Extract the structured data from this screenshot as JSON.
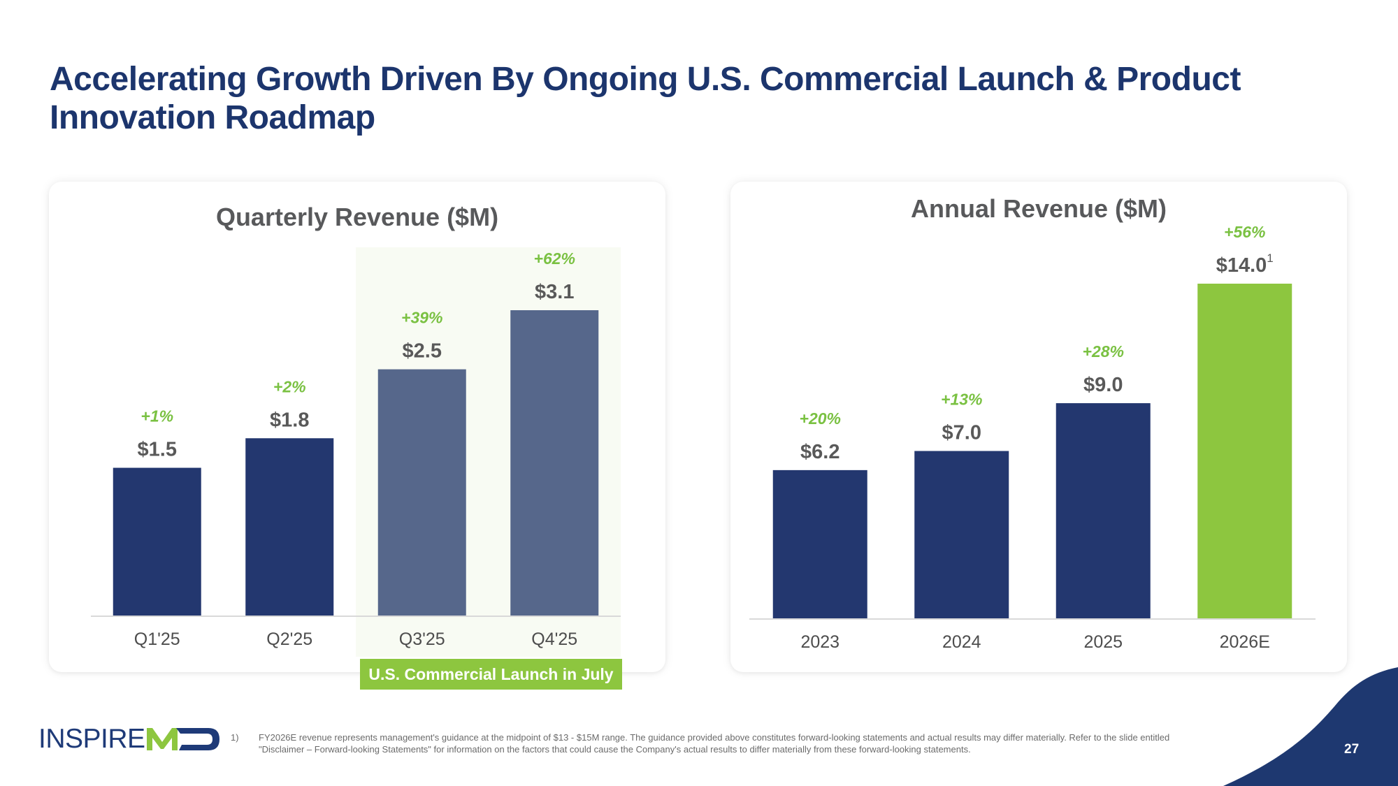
{
  "title": "Accelerating Growth Driven By Ongoing U.S. Commercial Launch & Product Innovation Roadmap",
  "colors": {
    "navy": "#23376f",
    "slate": "#56678b",
    "green": "#8dc63f",
    "growth_text": "#7ac142",
    "highlight_bg": "#f8fbf3",
    "axis": "#d9d9d9"
  },
  "chart_data": [
    {
      "type": "bar",
      "title": "Quarterly Revenue ($M)",
      "categories": [
        "Q1'25",
        "Q2'25",
        "Q3'25",
        "Q4'25"
      ],
      "values": [
        1.5,
        1.8,
        2.5,
        3.1
      ],
      "value_labels": [
        "$1.5",
        "$1.8",
        "$2.5",
        "$3.1"
      ],
      "growth_labels": [
        "+1%",
        "+2%",
        "+39%",
        "+62%"
      ],
      "bar_colors": [
        "#23376f",
        "#23376f",
        "#56678b",
        "#56678b"
      ],
      "highlighted_categories": [
        "Q3'25",
        "Q4'25"
      ],
      "annotation": "U.S. Commercial Launch in July",
      "xlabel": "",
      "ylabel": "",
      "ylim": [
        0,
        3.1
      ],
      "grid": false,
      "legend": "none"
    },
    {
      "type": "bar",
      "title": "Annual Revenue ($M)",
      "categories": [
        "2023",
        "2024",
        "2025",
        "2026E"
      ],
      "values": [
        6.2,
        7.0,
        9.0,
        14.0
      ],
      "value_labels": [
        "$6.2",
        "$7.0",
        "$9.0",
        "$14.0"
      ],
      "value_label_footnotes": [
        "",
        "",
        "",
        "1"
      ],
      "growth_labels": [
        "+20%",
        "+13%",
        "+28%",
        "+56%"
      ],
      "bar_colors": [
        "#23376f",
        "#23376f",
        "#23376f",
        "#8dc63f"
      ],
      "xlabel": "",
      "ylabel": "",
      "ylim": [
        0,
        14.0
      ],
      "grid": false,
      "legend": "none"
    }
  ],
  "logo": {
    "text_part": "INSPIRE",
    "mark_part": "MD"
  },
  "footnote": {
    "number": "1)",
    "text": "FY2026E revenue represents management's guidance at the midpoint of $13 - $15M range. The guidance provided above constitutes forward-looking statements and actual results may differ materially. Refer to the slide entitled \"Disclaimer – Forward-looking Statements\" for information on the factors that could cause the Company's actual results to differ materially from these forward-looking statements."
  },
  "page_number": "27"
}
